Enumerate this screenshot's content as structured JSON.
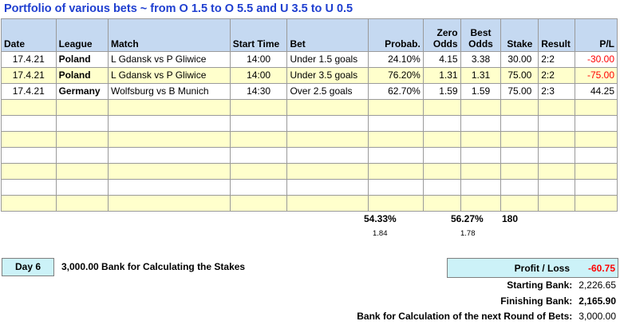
{
  "title": "Portfolio of various bets ~ from O 1.5 to O 5.5 and U 3.5 to U 0.5",
  "columns": {
    "date": "Date",
    "league": "League",
    "match": "Match",
    "start": "Start Time",
    "bet": "Bet",
    "prob": "Probab.",
    "zero_top": "Zero",
    "zero_bot": "Odds",
    "best_top": "Best",
    "best_bot": "Odds",
    "stake": "Stake",
    "result": "Result",
    "pl": "P/L"
  },
  "rows": [
    {
      "date": "17.4.21",
      "league": "Poland",
      "match": "L Gdansk vs P Gliwice",
      "start": "14:00",
      "bet": "Under 1.5 goals",
      "prob": "24.10%",
      "zero": "4.15",
      "best": "3.38",
      "stake": "30.00",
      "result": "2:2",
      "pl": "-30.00"
    },
    {
      "date": "17.4.21",
      "league": "Poland",
      "match": "L Gdansk vs P Gliwice",
      "start": "14:00",
      "bet": "Under 3.5 goals",
      "prob": "76.20%",
      "zero": "1.31",
      "best": "1.31",
      "stake": "75.00",
      "result": "2:2",
      "pl": "-75.00"
    },
    {
      "date": "17.4.21",
      "league": "Germany",
      "match": "Wolfsburg vs B Munich",
      "start": "14:30",
      "bet": "Over 2.5 goals",
      "prob": "62.70%",
      "zero": "1.59",
      "best": "1.59",
      "stake": "75.00",
      "result": "2:3",
      "pl": "44.25"
    }
  ],
  "summary": {
    "prob_avg": "54.33%",
    "prob_sub": "1.84",
    "best_avg": "56.27%",
    "best_sub": "1.78",
    "stake_total": "180"
  },
  "day": {
    "label": "Day 6"
  },
  "bank": {
    "calc_text": "3,000.00  Bank for Calculating the Stakes"
  },
  "profit": {
    "label": "Profit / Loss",
    "value": "-60.75"
  },
  "balances": [
    {
      "label": "Starting Bank:",
      "value": "2,226.65"
    },
    {
      "label": "Finishing Bank:",
      "value": "2,165.90"
    },
    {
      "label": "Bank for Calculation of the next Round of Bets:",
      "value": "3,000.00"
    }
  ]
}
